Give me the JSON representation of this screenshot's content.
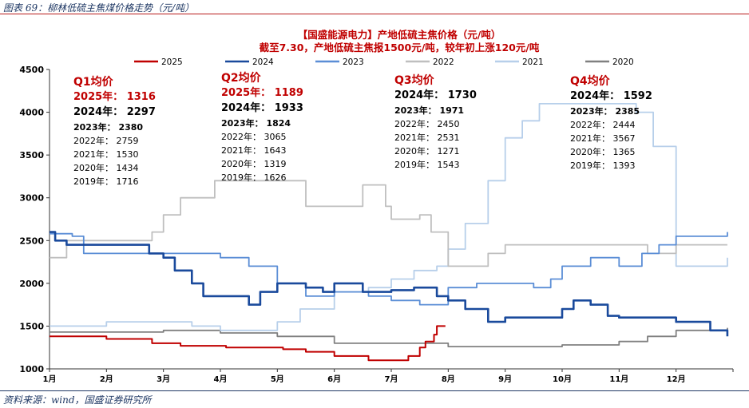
{
  "figure": {
    "title": "图表 69：柳林低硫主焦煤价格走势（元/吨）",
    "source": "资料来源：wind，国盛证券研究所"
  },
  "chart_data": {
    "type": "line",
    "title": "【国盛能源电力】产地低硫主焦价格（元/吨）",
    "subtitle": "截至7.30，产地低硫主焦报1500元/吨，较年初上涨120元/吨",
    "xlabel": "",
    "ylabel": "",
    "categories": [
      "1月",
      "2月",
      "3月",
      "4月",
      "5月",
      "6月",
      "7月",
      "8月",
      "9月",
      "10月",
      "11月",
      "12月"
    ],
    "ylim": [
      1000,
      4500
    ],
    "yticks": [
      1000,
      1500,
      2000,
      2500,
      3000,
      3500,
      4000,
      4500
    ],
    "grid": false,
    "legend_position": "top",
    "colors": {
      "2025": "#c00000",
      "2024": "#1a4a9c",
      "2023": "#5b8ed6",
      "2022": "#bfbfbf",
      "2021": "#b7cfea",
      "2020": "#808080",
      "title": "#c00000",
      "subtitle": "#c00000"
    },
    "series": [
      {
        "name": "2025",
        "x": [
          1.0,
          1.7,
          2.0,
          2.55,
          2.8,
          3.3,
          4.1,
          4.7,
          5.1,
          5.5,
          6.0,
          6.6,
          7.0,
          7.3,
          7.5,
          7.6,
          7.75,
          7.8,
          7.95
        ],
        "y": [
          1380,
          1380,
          1350,
          1350,
          1300,
          1270,
          1250,
          1250,
          1230,
          1200,
          1150,
          1100,
          1100,
          1150,
          1250,
          1320,
          1400,
          1500,
          1500
        ]
      },
      {
        "name": "2024",
        "x": [
          1.0,
          1.1,
          1.3,
          2.0,
          2.75,
          3.0,
          3.2,
          3.5,
          3.7,
          4.0,
          4.5,
          4.7,
          5.0,
          5.5,
          5.8,
          6.0,
          6.5,
          7.0,
          7.4,
          7.8,
          8.0,
          8.3,
          8.7,
          9.0,
          9.5,
          10.0,
          10.2,
          10.5,
          10.8,
          11.0,
          12.0,
          12.6,
          12.9
        ],
        "y": [
          2600,
          2500,
          2450,
          2450,
          2350,
          2300,
          2150,
          2000,
          1850,
          1850,
          1750,
          1900,
          2000,
          1950,
          1900,
          2000,
          1900,
          1920,
          1950,
          1850,
          1800,
          1700,
          1550,
          1600,
          1600,
          1700,
          1800,
          1750,
          1620,
          1600,
          1550,
          1450,
          1380
        ]
      },
      {
        "name": "2023",
        "x": [
          1.0,
          1.4,
          1.6,
          3.0,
          3.5,
          4.0,
          4.5,
          5.0,
          5.5,
          6.0,
          6.6,
          7.0,
          7.5,
          8.0,
          8.5,
          9.0,
          9.5,
          9.8,
          10.0,
          10.5,
          11.0,
          11.4,
          11.7,
          12.0,
          12.9
        ],
        "y": [
          2580,
          2550,
          2350,
          2350,
          2350,
          2300,
          2200,
          2000,
          1850,
          1900,
          1850,
          1800,
          1750,
          1950,
          2000,
          2000,
          1950,
          2050,
          2200,
          2300,
          2200,
          2350,
          2450,
          2550,
          2600
        ]
      },
      {
        "name": "2022",
        "x": [
          1.0,
          1.3,
          1.7,
          2.3,
          2.8,
          3.0,
          3.3,
          3.9,
          4.5,
          5.0,
          5.5,
          6.0,
          6.5,
          6.9,
          7.0,
          7.5,
          7.7,
          8.0,
          8.3,
          8.7,
          9.0,
          9.5,
          10.0,
          11.0,
          11.5,
          12.0,
          12.9
        ],
        "y": [
          2300,
          2500,
          2500,
          2500,
          2600,
          2800,
          3000,
          3200,
          3200,
          3200,
          2900,
          2900,
          3150,
          2900,
          2750,
          2800,
          2600,
          2200,
          2200,
          2350,
          2450,
          2450,
          2450,
          2450,
          2350,
          2450,
          2450
        ]
      },
      {
        "name": "2021",
        "x": [
          1.0,
          2.0,
          3.0,
          3.5,
          4.0,
          4.6,
          5.0,
          5.4,
          6.0,
          6.6,
          7.0,
          7.4,
          7.8,
          8.0,
          8.3,
          8.7,
          9.0,
          9.3,
          9.6,
          10.0,
          10.5,
          11.0,
          11.3,
          11.6,
          12.0,
          12.9
        ],
        "y": [
          1500,
          1550,
          1550,
          1500,
          1450,
          1450,
          1550,
          1700,
          1900,
          1950,
          2050,
          2150,
          2200,
          2400,
          2700,
          3200,
          3700,
          3900,
          4100,
          4100,
          4100,
          4100,
          4000,
          3600,
          2200,
          2300
        ]
      },
      {
        "name": "2020",
        "x": [
          1.0,
          2.0,
          3.0,
          4.0,
          5.0,
          6.0,
          7.0,
          8.0,
          9.0,
          10.0,
          11.0,
          11.5,
          12.0,
          12.5,
          12.9
        ],
        "y": [
          1430,
          1430,
          1450,
          1420,
          1380,
          1300,
          1300,
          1260,
          1260,
          1280,
          1320,
          1380,
          1450,
          1450,
          1480
        ]
      }
    ],
    "quarterly_averages": [
      {
        "heading": "Q1均价",
        "rows": [
          {
            "label": "2025年：",
            "value": "1316"
          },
          {
            "label": "2024年：",
            "value": "2297"
          },
          {
            "label": "2023年：",
            "value": "2380"
          },
          {
            "label": "2022年：",
            "value": "2759"
          },
          {
            "label": "2021年：",
            "value": "1530"
          },
          {
            "label": "2020年：",
            "value": "1434"
          },
          {
            "label": "2019年：",
            "value": "1716"
          }
        ]
      },
      {
        "heading": "Q2均价",
        "rows": [
          {
            "label": "2025年：",
            "value": "1189"
          },
          {
            "label": "2024年：",
            "value": "1933"
          },
          {
            "label": "2023年：",
            "value": "1824"
          },
          {
            "label": "2022年：",
            "value": "3065"
          },
          {
            "label": "2021年：",
            "value": "1643"
          },
          {
            "label": "2020年：",
            "value": "1319"
          },
          {
            "label": "2019年：",
            "value": "1626"
          }
        ]
      },
      {
        "heading": "Q3均价",
        "rows": [
          {
            "label": "2024年：",
            "value": "1730"
          },
          {
            "label": "2023年：",
            "value": "1971"
          },
          {
            "label": "2022年：",
            "value": "2450"
          },
          {
            "label": "2021年：",
            "value": "2531"
          },
          {
            "label": "2020年：",
            "value": "1271"
          },
          {
            "label": "2019年：",
            "value": "1543"
          }
        ]
      },
      {
        "heading": "Q4均价",
        "rows": [
          {
            "label": "2024年：",
            "value": "1592"
          },
          {
            "label": "2023年：",
            "value": "2385"
          },
          {
            "label": "2022年：",
            "value": "2444"
          },
          {
            "label": "2021年：",
            "value": "3567"
          },
          {
            "label": "2020年：",
            "value": "1365"
          },
          {
            "label": "2019年：",
            "value": "1393"
          }
        ]
      }
    ]
  }
}
